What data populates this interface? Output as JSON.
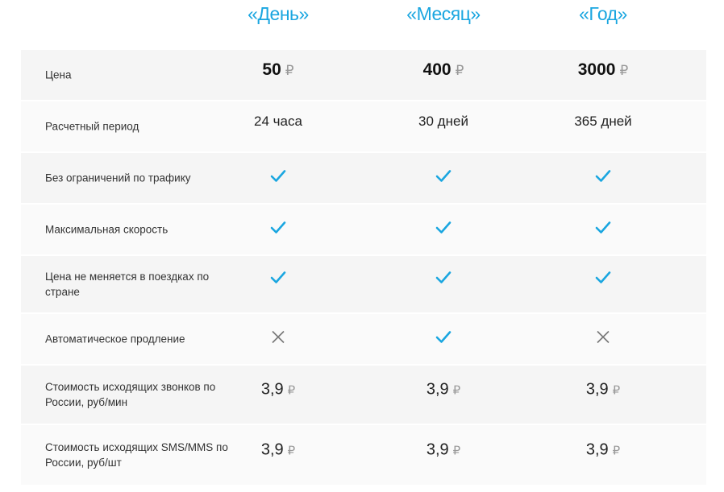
{
  "plans": [
    "«День»",
    "«Месяц»",
    "«Год»"
  ],
  "currency_symbol": "₽",
  "colors": {
    "accent": "#1aa6e0",
    "cross": "#777777"
  },
  "rows": [
    {
      "label": "Цена",
      "values": [
        "50",
        "400",
        "3000"
      ]
    },
    {
      "label": "Расчетный период",
      "values": [
        "24 часа",
        "30 дней",
        "365 дней"
      ]
    },
    {
      "label": "Без ограничений по трафику",
      "values": [
        "check-icon",
        "check-icon",
        "check-icon"
      ]
    },
    {
      "label": "Максимальная скорость",
      "values": [
        "check-icon",
        "check-icon",
        "check-icon"
      ]
    },
    {
      "label": "Цена не меняется в поездках по стране",
      "values": [
        "check-icon",
        "check-icon",
        "check-icon"
      ]
    },
    {
      "label": "Автоматическое продление",
      "values": [
        "cross-icon",
        "check-icon",
        "cross-icon"
      ]
    },
    {
      "label": "Стоимость исходящих звонков по России, руб/мин",
      "values": [
        "3,9",
        "3,9",
        "3,9"
      ]
    },
    {
      "label": "Стоимость исходящих SMS/MMS по России, руб/шт",
      "values": [
        "3,9",
        "3,9",
        "3,9"
      ]
    }
  ]
}
